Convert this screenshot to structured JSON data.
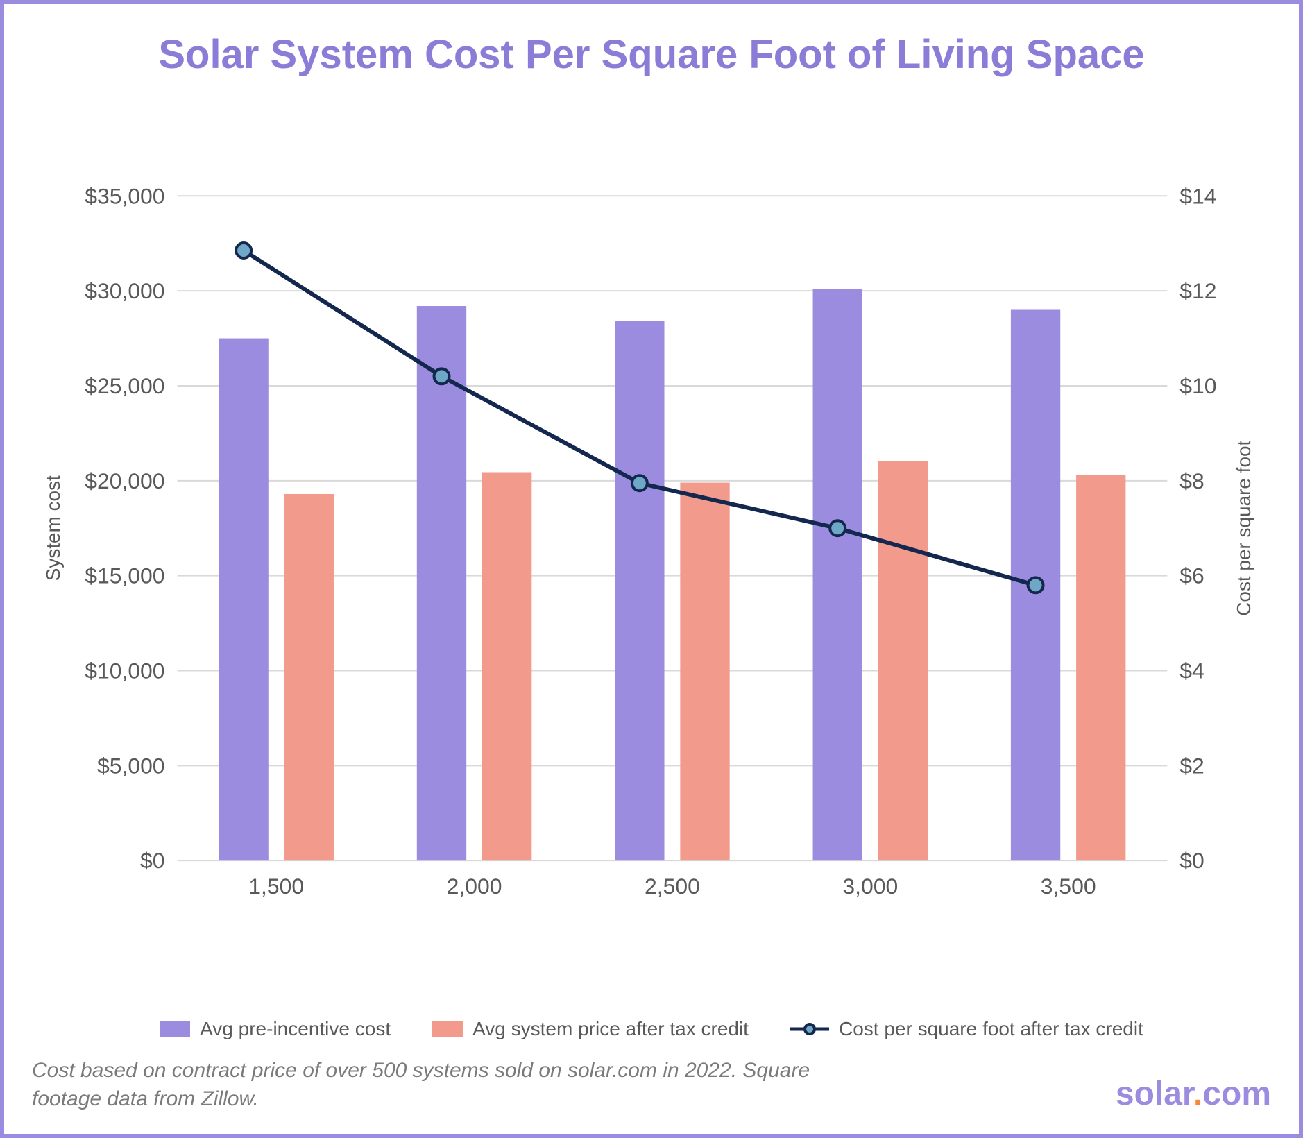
{
  "chart": {
    "type": "bar+line",
    "title": "Solar System Cost Per Square Foot of Living Space",
    "title_color": "#8b7cd7",
    "title_fontsize": 58,
    "background_color": "#ffffff",
    "border_color": "#9b8ce0",
    "grid_color": "#d9d9d9",
    "axis_text_color": "#595959",
    "text_color": "#595959",
    "categories": [
      "1,500",
      "2,000",
      "2,500",
      "3,000",
      "3,500"
    ],
    "x_tick_fontsize": 32,
    "left_axis": {
      "label": "System cost",
      "min": 0,
      "max": 35000,
      "step": 5000,
      "tick_labels": [
        "$0",
        "$5,000",
        "$10,000",
        "$15,000",
        "$20,000",
        "$25,000",
        "$30,000",
        "$35,000"
      ],
      "label_fontsize": 28,
      "tick_fontsize": 32
    },
    "right_axis": {
      "label": "Cost per square foot",
      "min": 0,
      "max": 14,
      "step": 2,
      "tick_labels": [
        "$0",
        "$2",
        "$4",
        "$6",
        "$8",
        "$10",
        "$12",
        "$14"
      ],
      "label_fontsize": 28,
      "tick_fontsize": 32
    },
    "series": {
      "bar_a": {
        "name": "Avg pre-incentive cost",
        "color": "#9b8ce0",
        "values": [
          27500,
          29200,
          28400,
          30100,
          29000
        ]
      },
      "bar_b": {
        "name": "Avg system price after tax credit",
        "color": "#f29b8d",
        "values": [
          19300,
          20450,
          19900,
          21050,
          20300
        ]
      },
      "line": {
        "name": "Cost per square foot after tax credit",
        "line_color": "#14274e",
        "line_width": 6,
        "marker_fill": "#6fa8c7",
        "marker_stroke": "#14274e",
        "marker_stroke_width": 4,
        "marker_radius": 11,
        "values": [
          12.85,
          10.2,
          7.95,
          7.0,
          5.8
        ]
      }
    },
    "bar_group_width_ratio": 0.58,
    "bar_gap_ratio": 0.08,
    "legend_fontsize": 28
  },
  "footnote": {
    "text": "Cost based on contract price of over 500 systems sold on solar.com in 2022. Square footage data from Zillow.",
    "fontsize": 30,
    "color": "#7a7a7a"
  },
  "brand": {
    "text_a": "solar",
    "color_a": "#9b8ce0",
    "text_b": ".",
    "color_b": "#f58a3c",
    "text_c": "com",
    "color_c": "#9b8ce0",
    "fontsize": 48
  }
}
